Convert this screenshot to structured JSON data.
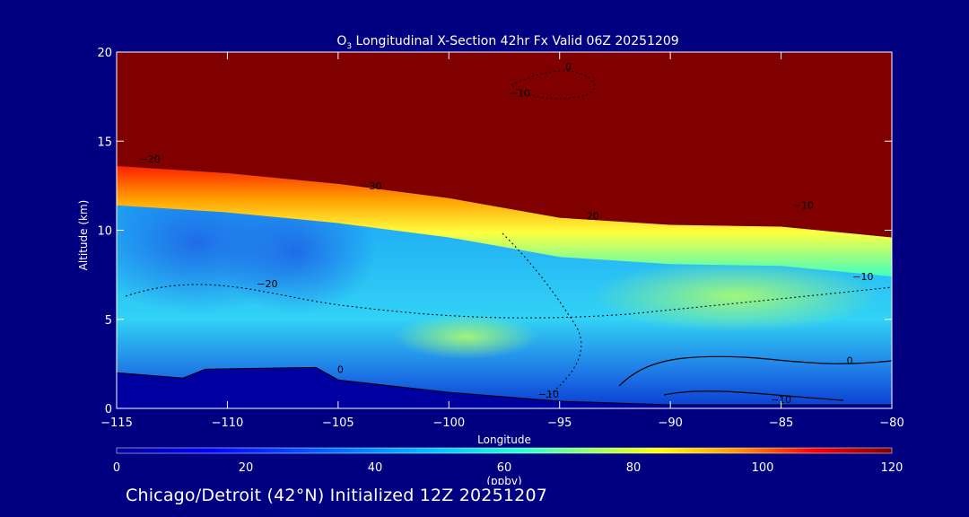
{
  "chart_data": {
    "type": "heatmap",
    "title_species": "O",
    "title_subscript": "3",
    "title_rest": " Longitudinal X-Section 42hr  Fx Valid 06Z 20251209",
    "xlabel": "Longitude",
    "ylabel": "Altitude (km)",
    "xlim": [
      -115,
      -80
    ],
    "ylim": [
      0,
      20
    ],
    "x_ticks": [
      -115,
      -110,
      -105,
      -100,
      -95,
      -90,
      -85,
      -80
    ],
    "x_tick_labels": [
      "−115",
      "−110",
      "−105",
      "−100",
      "−95",
      "−90",
      "−85",
      "−80"
    ],
    "y_ticks": [
      0,
      5,
      10,
      15,
      20
    ],
    "y_tick_labels": [
      "0",
      "5",
      "10",
      "15",
      "20"
    ],
    "colorbar": {
      "label": "(ppbv)",
      "range": [
        0,
        120
      ],
      "ticks": [
        0,
        20,
        40,
        60,
        80,
        100,
        120
      ],
      "tick_labels": [
        "0",
        "20",
        "40",
        "60",
        "80",
        "100",
        "120"
      ]
    },
    "tropopause_boundary_km": [
      {
        "lon": -115,
        "alt": 13.6
      },
      {
        "lon": -110,
        "alt": 13.2
      },
      {
        "lon": -105,
        "alt": 12.6
      },
      {
        "lon": -100,
        "alt": 11.8
      },
      {
        "lon": -95,
        "alt": 10.7
      },
      {
        "lon": -90,
        "alt": 10.3
      },
      {
        "lon": -85,
        "alt": 10.2
      },
      {
        "lon": -80,
        "alt": 9.6
      }
    ],
    "terrain_km": [
      {
        "lon": -115,
        "alt": 2.0
      },
      {
        "lon": -112,
        "alt": 1.7
      },
      {
        "lon": -111,
        "alt": 2.2
      },
      {
        "lon": -106,
        "alt": 2.3
      },
      {
        "lon": -105,
        "alt": 1.6
      },
      {
        "lon": -100,
        "alt": 0.9
      },
      {
        "lon": -95,
        "alt": 0.4
      },
      {
        "lon": -90,
        "alt": 0.2
      },
      {
        "lon": -85,
        "alt": 0.2
      },
      {
        "lon": -80,
        "alt": 0.2
      }
    ],
    "contour_labels": [
      {
        "text": "−20",
        "lon": -113.5,
        "alt": 13.8
      },
      {
        "text": "−30",
        "lon": -103.5,
        "alt": 12.3
      },
      {
        "text": "−10",
        "lon": -96.8,
        "alt": 17.5
      },
      {
        "text": "0",
        "lon": -94.6,
        "alt": 19.0
      },
      {
        "text": "−20",
        "lon": -108.2,
        "alt": 6.8
      },
      {
        "text": "0",
        "lon": -104.9,
        "alt": 2.0
      },
      {
        "text": "−10",
        "lon": -95.5,
        "alt": 0.6
      },
      {
        "text": "−10",
        "lon": -84.0,
        "alt": 11.2
      },
      {
        "text": "−10",
        "lon": -81.3,
        "alt": 7.2
      },
      {
        "text": "0",
        "lon": -81.9,
        "alt": 2.5
      },
      {
        "text": "−10",
        "lon": -85.0,
        "alt": 0.3
      },
      {
        "text": "20",
        "lon": -93.5,
        "alt": 10.6
      }
    ]
  },
  "footer": "Chicago/Detroit (42°N) Initialized 12Z 20251207"
}
